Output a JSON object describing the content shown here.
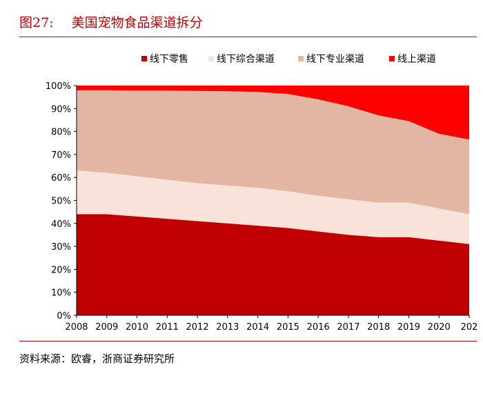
{
  "figure": {
    "number": "图27:",
    "title": "美国宠物食品渠道拆分",
    "source": "资料来源：欧睿，浙商证券研究所"
  },
  "colors": {
    "rule": "#c00000",
    "title": "#c00000"
  },
  "chart_data": {
    "type": "area",
    "stacked": true,
    "x": [
      "2008",
      "2009",
      "2010",
      "2011",
      "2012",
      "2013",
      "2014",
      "2015",
      "2016",
      "2017",
      "2018",
      "2019",
      "2020",
      "202"
    ],
    "y_ticks": [
      "0%",
      "10%",
      "20%",
      "30%",
      "40%",
      "50%",
      "60%",
      "70%",
      "80%",
      "90%",
      "100%"
    ],
    "ylim": [
      0,
      100
    ],
    "grid": false,
    "legend_position": "top",
    "series": [
      {
        "name": "线下零售",
        "color": "#c00000",
        "values": [
          44.0,
          44.0,
          43.0,
          42.0,
          41.0,
          40.0,
          39.0,
          38.0,
          36.5,
          35.0,
          34.0,
          34.0,
          32.5,
          31.0
        ]
      },
      {
        "name": "线下综合渠道",
        "color": "#f8e2da",
        "values": [
          19.0,
          18.0,
          17.5,
          17.0,
          16.5,
          16.5,
          16.5,
          16.0,
          15.5,
          15.5,
          15.0,
          15.0,
          14.0,
          13.0
        ]
      },
      {
        "name": "线下专业渠道",
        "color": "#e3b6a3",
        "values": [
          35.0,
          36.0,
          37.3,
          38.8,
          40.2,
          41.0,
          41.7,
          42.3,
          42.0,
          40.5,
          38.0,
          35.5,
          32.5,
          32.5
        ]
      },
      {
        "name": "线上渠道",
        "color": "#ff0000",
        "values": [
          2.0,
          2.0,
          2.2,
          2.2,
          2.3,
          2.5,
          2.8,
          3.7,
          6.0,
          9.0,
          13.0,
          15.5,
          21.0,
          23.5
        ]
      }
    ]
  }
}
